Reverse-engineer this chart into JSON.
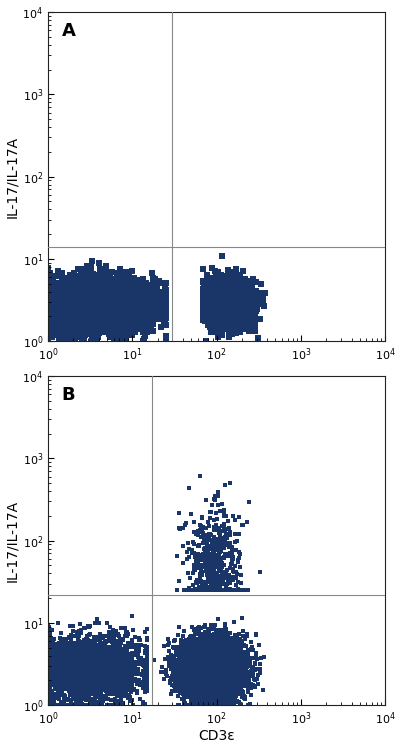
{
  "dot_color": "#1a3669",
  "background_color": "#ffffff",
  "axis_color": "#333333",
  "gate_line_color": "#888888",
  "xlim": [
    1,
    10000
  ],
  "ylim": [
    1,
    10000
  ],
  "xlabel": "CD3ε",
  "ylabel": "IL-17/IL-17A",
  "panel_labels": [
    "A",
    "B"
  ],
  "panel_label_fontsize": 13,
  "label_fontsize": 10,
  "tick_fontsize": 8,
  "gate_x_A": 30,
  "gate_y_A": 14,
  "gate_x_B": 17,
  "gate_y_B": 22,
  "dot_size_A": 18,
  "dot_size_B": 12,
  "n_A_bl": 5000,
  "n_A_br": 4000,
  "n_B_bl": 3000,
  "n_B_br": 9000,
  "n_B_tr": 600
}
